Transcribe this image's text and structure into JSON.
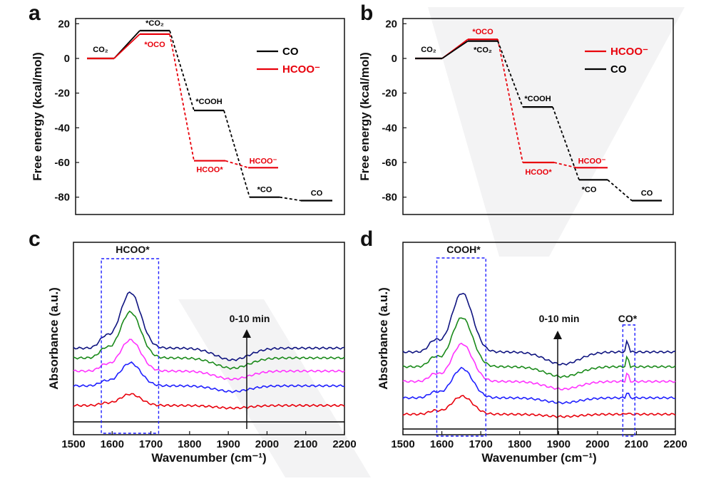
{
  "chart_data": [
    {
      "panel": "a",
      "type": "line",
      "ylabel": "Free energy (kcal/mol)",
      "ylim": [
        -90,
        23
      ],
      "yticks": [
        20,
        0,
        -20,
        -40,
        -60,
        -80
      ],
      "legend": {
        "placement": "top-right",
        "entries": [
          "CO",
          "HCOO⁻"
        ]
      },
      "series": [
        {
          "name": "CO",
          "color": "#000000",
          "x": [
            1,
            2,
            3,
            4,
            5
          ],
          "values": [
            0,
            16,
            -30,
            -80,
            -82
          ],
          "labels": [
            "CO₂",
            "*CO₂",
            "*COOH",
            "*CO",
            "CO"
          ]
        },
        {
          "name": "HCOO⁻",
          "color": "#e8000b",
          "x": [
            1,
            2,
            3,
            4
          ],
          "values": [
            0,
            14,
            -59,
            -63
          ],
          "labels": [
            "",
            "*OCO",
            "HCOO*",
            "HCOO⁻"
          ]
        }
      ]
    },
    {
      "panel": "b",
      "type": "line",
      "ylabel": "Free energy (kcal/mol)",
      "ylim": [
        -90,
        23
      ],
      "yticks": [
        20,
        0,
        -20,
        -40,
        -60,
        -80
      ],
      "legend": {
        "placement": "top-right",
        "entries": [
          "HCOO⁻",
          "CO"
        ]
      },
      "series": [
        {
          "name": "HCOO⁻",
          "color": "#e8000b",
          "x": [
            1,
            2,
            3,
            4
          ],
          "values": [
            0,
            11,
            -60,
            -63
          ],
          "labels": [
            "",
            "*OCO",
            "HCOO*",
            "HCOO⁻"
          ]
        },
        {
          "name": "CO",
          "color": "#000000",
          "x": [
            1,
            2,
            3,
            4,
            5
          ],
          "values": [
            0,
            10,
            -28,
            -70,
            -82
          ],
          "labels": [
            "CO₂",
            "*CO₂",
            "*COOH",
            "*CO",
            "CO"
          ]
        }
      ]
    },
    {
      "panel": "c",
      "type": "line",
      "xlabel": "Wavenumber (cm⁻¹)",
      "ylabel": "Absorbance (a.u.)",
      "xlim": [
        1500,
        2200
      ],
      "xticks": [
        1500,
        1600,
        1700,
        1800,
        1900,
        2000,
        2100,
        2200
      ],
      "annotations": [
        "HCOO*",
        "0-10 min"
      ],
      "series": [
        {
          "color": "#000000",
          "base": 0,
          "peak": 0,
          "cobump": 0
        },
        {
          "color": "#e8000b",
          "base": 10,
          "peak": 7,
          "cobump": 0
        },
        {
          "color": "#1f1fff",
          "base": 22,
          "peak": 14,
          "cobump": 0
        },
        {
          "color": "#ff33ff",
          "base": 31,
          "peak": 19,
          "cobump": 0
        },
        {
          "color": "#1a8a1a",
          "base": 39,
          "peak": 28,
          "cobump": 0
        },
        {
          "color": "#0f1480",
          "base": 45,
          "peak": 34,
          "cobump": 0
        }
      ]
    },
    {
      "panel": "d",
      "type": "line",
      "xlabel": "Wavenumber (cm⁻¹)",
      "ylabel": "Absorbance (a.u.)",
      "xlim": [
        1500,
        2200
      ],
      "xticks": [
        1500,
        1600,
        1700,
        1800,
        1900,
        2000,
        2100,
        2200
      ],
      "annotations": [
        "COOH*",
        "0-10 min",
        "CO*"
      ],
      "series": [
        {
          "color": "#000000",
          "base": 0,
          "peak": 0,
          "cobump": 0
        },
        {
          "color": "#e8000b",
          "base": 9,
          "peak": 11,
          "cobump": 1
        },
        {
          "color": "#1f1fff",
          "base": 19,
          "peak": 18,
          "cobump": 4
        },
        {
          "color": "#ff33ff",
          "base": 29,
          "peak": 23,
          "cobump": 6
        },
        {
          "color": "#1a8a1a",
          "base": 38,
          "peak": 30,
          "cobump": 7
        },
        {
          "color": "#0f1480",
          "base": 47,
          "peak": 36,
          "cobump": 8
        }
      ]
    }
  ]
}
